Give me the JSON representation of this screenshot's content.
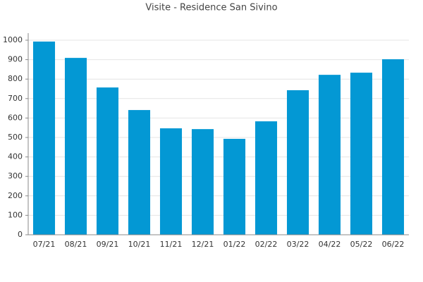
{
  "chart_data": {
    "type": "bar",
    "title": "Visite - Residence San Sivino",
    "categories": [
      "07/21",
      "08/21",
      "09/21",
      "10/21",
      "11/21",
      "12/21",
      "01/22",
      "02/22",
      "03/22",
      "04/22",
      "05/22",
      "06/22"
    ],
    "values": [
      993,
      909,
      757,
      641,
      547,
      543,
      493,
      583,
      743,
      822,
      833,
      902
    ],
    "color": "#0398d4",
    "ylim": [
      0,
      1000
    ],
    "yticks": [
      0,
      100,
      200,
      300,
      400,
      500,
      600,
      700,
      800,
      900,
      1000
    ],
    "grid": true
  }
}
